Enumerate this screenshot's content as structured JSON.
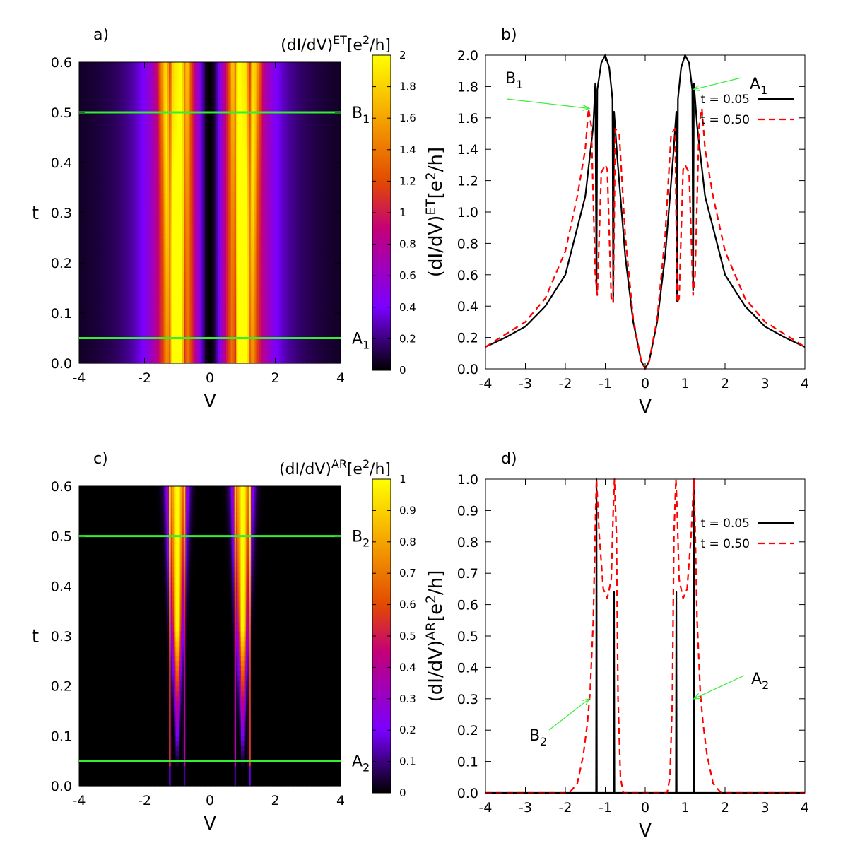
{
  "chart_data": [
    {
      "panel": "a)",
      "type": "heatmap",
      "title": "(dI/dV)^{ET}[e^2/h]",
      "xlabel": "V",
      "ylabel": "t",
      "xlim": [
        -4,
        4
      ],
      "ylim": [
        0.0,
        0.6
      ],
      "xticks": [
        "-4",
        "-2",
        "0",
        "2",
        "4"
      ],
      "yticks": [
        "0.0",
        "0.1",
        "0.2",
        "0.3",
        "0.4",
        "0.5",
        "0.6"
      ],
      "colorbar": {
        "range": [
          0,
          2
        ],
        "ticks": [
          "0",
          "0.2",
          "0.4",
          "0.6",
          "0.8",
          "1",
          "1.2",
          "1.4",
          "1.6",
          "1.8",
          "2"
        ],
        "colors": [
          "#000000",
          "#7a00ff",
          "#c40077",
          "#e34a00",
          "#f5a400",
          "#ffff00"
        ]
      },
      "reference_lines": [
        {
          "t": 0.5,
          "label": "B",
          "sub": "1",
          "color": "#33ee33"
        },
        {
          "t": 0.05,
          "label": "A",
          "sub": "1",
          "color": "#33ee33"
        }
      ]
    },
    {
      "panel": "b)",
      "type": "line",
      "ylabel": "(dI/dV)^{ET}[e^2/h]",
      "xlabel": "V",
      "xlim": [
        -4,
        4
      ],
      "ylim": [
        0.0,
        2.0
      ],
      "xticks": [
        "-4",
        "-3",
        "-2",
        "-1",
        "0",
        "1",
        "2",
        "3",
        "4"
      ],
      "yticks": [
        "0.0",
        "0.2",
        "0.4",
        "0.6",
        "0.8",
        "1.0",
        "1.2",
        "1.4",
        "1.6",
        "1.8",
        "2.0"
      ],
      "series": [
        {
          "name": "t = 0.05",
          "color": "#000000",
          "dash": "solid",
          "x": [
            -4,
            -3.5,
            -3,
            -2.5,
            -2,
            -1.5,
            -1.3,
            -1.25,
            -1.22,
            -1.2,
            -1.1,
            -1.0,
            -0.9,
            -0.82,
            -0.8,
            -0.78,
            -0.7,
            -0.5,
            -0.3,
            -0.1,
            0,
            0.1,
            0.3,
            0.5,
            0.7,
            0.78,
            0.8,
            0.82,
            0.9,
            1.0,
            1.1,
            1.18,
            1.2,
            1.22,
            1.3,
            1.5,
            2,
            2.5,
            3,
            3.5,
            4
          ],
          "y": [
            0.14,
            0.2,
            0.27,
            0.4,
            0.6,
            1.1,
            1.55,
            1.82,
            0.5,
            1.78,
            1.95,
            2.0,
            1.92,
            1.72,
            0.43,
            1.64,
            1.35,
            0.72,
            0.3,
            0.05,
            0.0,
            0.05,
            0.3,
            0.72,
            1.35,
            1.64,
            0.43,
            1.72,
            1.92,
            2.0,
            1.95,
            1.78,
            0.5,
            1.82,
            1.55,
            1.1,
            0.6,
            0.4,
            0.27,
            0.2,
            0.14
          ]
        },
        {
          "name": "t = 0.50",
          "color": "#ff0000",
          "dash": "dashed",
          "x": [
            -4,
            -3.5,
            -3,
            -2.5,
            -2,
            -1.7,
            -1.5,
            -1.42,
            -1.35,
            -1.25,
            -1.2,
            -1.1,
            -1.0,
            -0.95,
            -0.85,
            -0.8,
            -0.75,
            -0.65,
            -0.5,
            -0.3,
            -0.1,
            0,
            0.1,
            0.3,
            0.5,
            0.65,
            0.75,
            0.8,
            0.85,
            0.95,
            1.0,
            1.1,
            1.2,
            1.25,
            1.35,
            1.42,
            1.5,
            1.7,
            2,
            2.5,
            3,
            3.5,
            4
          ],
          "y": [
            0.14,
            0.22,
            0.3,
            0.45,
            0.75,
            1.1,
            1.4,
            1.66,
            1.55,
            0.6,
            0.47,
            1.25,
            1.3,
            1.27,
            0.45,
            0.42,
            1.53,
            1.5,
            0.85,
            0.32,
            0.05,
            0.0,
            0.05,
            0.32,
            0.85,
            1.5,
            1.53,
            0.42,
            0.45,
            1.27,
            1.3,
            1.25,
            0.47,
            0.6,
            1.55,
            1.66,
            1.4,
            1.1,
            0.75,
            0.45,
            0.3,
            0.22,
            0.14
          ]
        }
      ],
      "annotations": [
        {
          "label": "B",
          "sub": "1",
          "points_to": [
            -1.4,
            1.66
          ]
        },
        {
          "label": "A",
          "sub": "1",
          "points_to": [
            1.2,
            1.78
          ]
        }
      ],
      "legend": "top-right"
    },
    {
      "panel": "c)",
      "type": "heatmap",
      "title": "(dI/dV)^{AR}[e^2/h]",
      "xlabel": "V",
      "ylabel": "t",
      "xlim": [
        -4,
        4
      ],
      "ylim": [
        0.0,
        0.6
      ],
      "xticks": [
        "-4",
        "-2",
        "0",
        "2",
        "4"
      ],
      "yticks": [
        "0.0",
        "0.1",
        "0.2",
        "0.3",
        "0.4",
        "0.5",
        "0.6"
      ],
      "colorbar": {
        "range": [
          0,
          1
        ],
        "ticks": [
          "0",
          "0.1",
          "0.2",
          "0.3",
          "0.4",
          "0.5",
          "0.6",
          "0.7",
          "0.8",
          "0.9",
          "1"
        ],
        "colors": [
          "#000000",
          "#7a00ff",
          "#c40077",
          "#e34a00",
          "#f5a400",
          "#ffff00"
        ]
      },
      "reference_lines": [
        {
          "t": 0.5,
          "label": "B",
          "sub": "2",
          "color": "#33ee33"
        },
        {
          "t": 0.05,
          "label": "A",
          "sub": "2",
          "color": "#33ee33"
        }
      ]
    },
    {
      "panel": "d)",
      "type": "line",
      "ylabel": "(dI/dV)^{AR}[e^2/h]",
      "xlabel": "V",
      "xlim": [
        -4,
        4
      ],
      "ylim": [
        0.0,
        1.0
      ],
      "xticks": [
        "-4",
        "-3",
        "-2",
        "-1",
        "0",
        "1",
        "2",
        "3",
        "4"
      ],
      "yticks": [
        "0.0",
        "0.1",
        "0.2",
        "0.3",
        "0.4",
        "0.5",
        "0.6",
        "0.7",
        "0.8",
        "0.9",
        "1.0"
      ],
      "series": [
        {
          "name": "t = 0.05",
          "color": "#000000",
          "dash": "solid",
          "x": [
            -4,
            -1.25,
            -1.23,
            -1.22,
            -1.21,
            -1.19,
            -0.81,
            -0.79,
            -0.78,
            -0.77,
            -0.75,
            0.75,
            0.77,
            0.78,
            0.79,
            0.81,
            1.19,
            1.21,
            1.22,
            1.23,
            1.25,
            4
          ],
          "y": [
            0.0,
            0.0,
            0.0,
            1.0,
            0.0,
            0.0,
            0.0,
            0.0,
            0.64,
            0.0,
            0.0,
            0.0,
            0.0,
            0.64,
            0.0,
            0.0,
            0.0,
            0.0,
            1.0,
            0.0,
            0.0,
            0.0
          ]
        },
        {
          "name": "t = 0.50",
          "color": "#ff0000",
          "dash": "dashed",
          "x": [
            -4,
            -1.9,
            -1.7,
            -1.55,
            -1.45,
            -1.38,
            -1.3,
            -1.25,
            -1.22,
            -1.15,
            -1.05,
            -0.95,
            -0.85,
            -0.8,
            -0.77,
            -0.72,
            -0.68,
            -0.62,
            -0.55,
            0.55,
            0.62,
            0.68,
            0.72,
            0.77,
            0.8,
            0.85,
            0.95,
            1.05,
            1.15,
            1.22,
            1.25,
            1.3,
            1.38,
            1.45,
            1.55,
            1.7,
            1.9,
            4
          ],
          "y": [
            0.0,
            0.0,
            0.03,
            0.12,
            0.22,
            0.32,
            0.55,
            0.85,
            1.0,
            0.82,
            0.65,
            0.62,
            0.68,
            0.9,
            1.0,
            0.82,
            0.3,
            0.05,
            0.0,
            0.0,
            0.05,
            0.3,
            0.82,
            1.0,
            0.9,
            0.68,
            0.62,
            0.65,
            0.82,
            1.0,
            0.85,
            0.55,
            0.32,
            0.22,
            0.12,
            0.03,
            0.0,
            0.0
          ]
        }
      ],
      "annotations": [
        {
          "label": "B",
          "sub": "2",
          "points_to": [
            -1.4,
            0.3
          ]
        },
        {
          "label": "A",
          "sub": "2",
          "points_to": [
            1.22,
            0.3
          ]
        }
      ],
      "legend": "top-right"
    }
  ]
}
